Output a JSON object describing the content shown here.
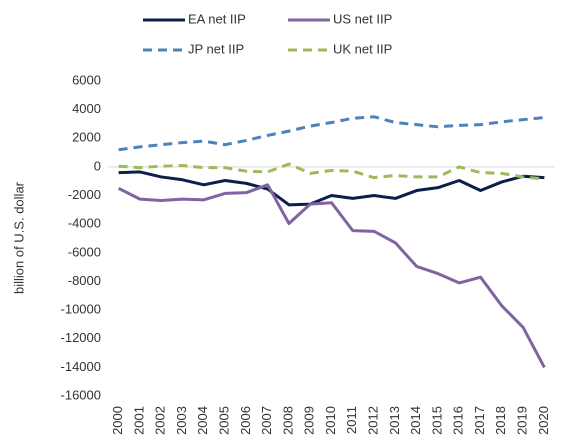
{
  "chart_data": {
    "type": "line",
    "y_axis_label": "billion of U.S. dollar",
    "categories": [
      "2000",
      "2001",
      "2002",
      "2003",
      "2004",
      "2005",
      "2006",
      "2007",
      "2008",
      "2009",
      "2010",
      "2011",
      "2012",
      "2013",
      "2014",
      "2015",
      "2016",
      "2017",
      "2018",
      "2019",
      "2020"
    ],
    "series": [
      {
        "name": "EA net  IIP",
        "color": "#0b1f4b",
        "dash": false,
        "values": [
          -400,
          -350,
          -700,
          -900,
          -1250,
          -950,
          -1150,
          -1550,
          -2650,
          -2600,
          -2000,
          -2200,
          -2000,
          -2200,
          -1650,
          -1450,
          -950,
          -1650,
          -1050,
          -650,
          -750
        ]
      },
      {
        "name": "US net IIP",
        "color": "#8064a2",
        "dash": false,
        "values": [
          -1500,
          -2250,
          -2350,
          -2250,
          -2300,
          -1850,
          -1800,
          -1250,
          -3950,
          -2600,
          -2500,
          -4450,
          -4500,
          -5300,
          -6950,
          -7450,
          -8100,
          -7700,
          -9700,
          -11200,
          -14000
        ]
      },
      {
        "name": "JP net IIP",
        "color": "#4f81bd",
        "dash": true,
        "values": [
          1200,
          1400,
          1550,
          1700,
          1800,
          1550,
          1850,
          2200,
          2500,
          2850,
          3100,
          3400,
          3500,
          3100,
          2950,
          2800,
          2900,
          2950,
          3150,
          3300,
          3450
        ]
      },
      {
        "name": "UK net IIP",
        "color": "#9bbb59",
        "dash": true,
        "values": [
          50,
          -50,
          50,
          100,
          -50,
          -50,
          -300,
          -350,
          200,
          -450,
          -250,
          -300,
          -750,
          -600,
          -700,
          -700,
          0,
          -400,
          -450,
          -700,
          -850
        ]
      }
    ],
    "ylim": [
      -16000,
      6000
    ],
    "yticks": [
      6000,
      4000,
      2000,
      0,
      -2000,
      -4000,
      -6000,
      -8000,
      -10000,
      -12000,
      -14000,
      -16000
    ],
    "grid": false
  }
}
